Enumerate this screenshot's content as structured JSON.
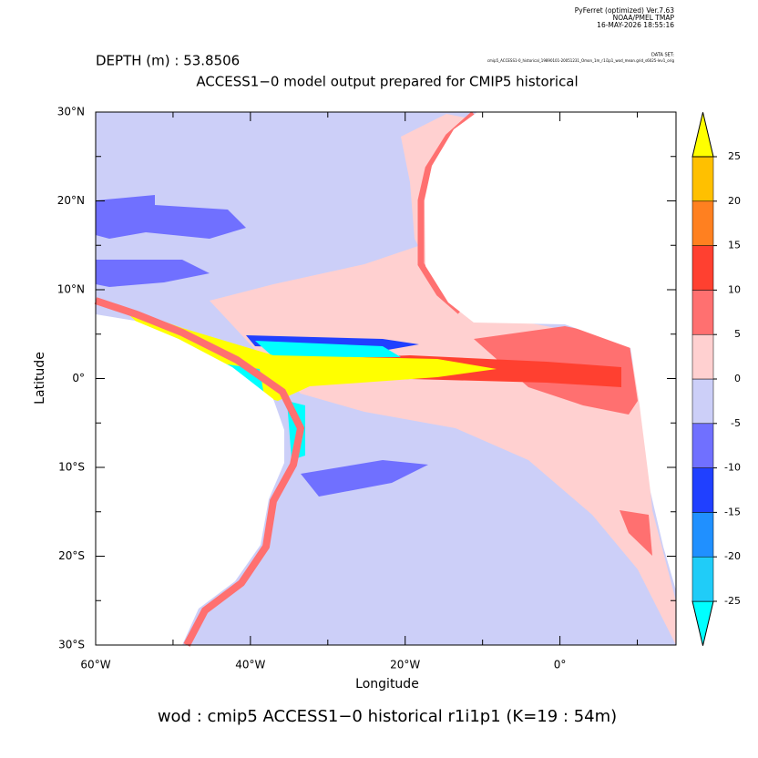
{
  "header": {
    "program": "PyFerret (optimized) Ver.7.63",
    "org": "NOAA/PMEL TMAP",
    "timestamp": "16-MAY-2026 18:55:16",
    "dataset_label": "DATA SET:",
    "dataset": "cmip5_ACCESS1-0_historical_19890101-20051231_Omon_1m_r1i1p1_wod_mean.grid_s6025-lev1_orig"
  },
  "chart_data": {
    "type": "shaded",
    "subtitle": "DEPTH (m) : 53.8506",
    "title": "ACCESS1−0 model output prepared for CMIP5 historical",
    "x_label": "Longitude",
    "y_label": "Latitude",
    "xlim": [
      -60,
      15
    ],
    "ylim": [
      -30,
      30
    ],
    "xticks": [
      {
        "value": -60,
        "label": "60°W"
      },
      {
        "value": -40,
        "label": "40°W"
      },
      {
        "value": -20,
        "label": "20°W"
      },
      {
        "value": 0,
        "label": "0°"
      }
    ],
    "xminor": [
      -50,
      -30,
      -10,
      10
    ],
    "yticks": [
      {
        "value": 30,
        "label": "30°N"
      },
      {
        "value": 20,
        "label": "20°N"
      },
      {
        "value": 10,
        "label": "10°N"
      },
      {
        "value": 0,
        "label": "0°"
      },
      {
        "value": -10,
        "label": "10°S"
      },
      {
        "value": -20,
        "label": "20°S"
      },
      {
        "value": -30,
        "label": "30°S"
      }
    ],
    "yminor": [
      25,
      15,
      5,
      -5,
      -15,
      -25
    ],
    "colorbar": {
      "levels": [
        -25,
        -20,
        -15,
        -10,
        -5,
        0,
        5,
        10,
        15,
        20,
        25
      ],
      "colors": [
        "#00ffff",
        "#20ccf8",
        "#2090ff",
        "#2040ff",
        "#7070ff",
        "#cccff8",
        "#ffd0d0",
        "#ff7070",
        "#ff4030",
        "#ff8020",
        "#ffc000",
        "#ffff00"
      ]
    },
    "footer": "wod : cmip5 ACCESS1−0 historical r1i1p1   (K=19 : 54m)"
  }
}
